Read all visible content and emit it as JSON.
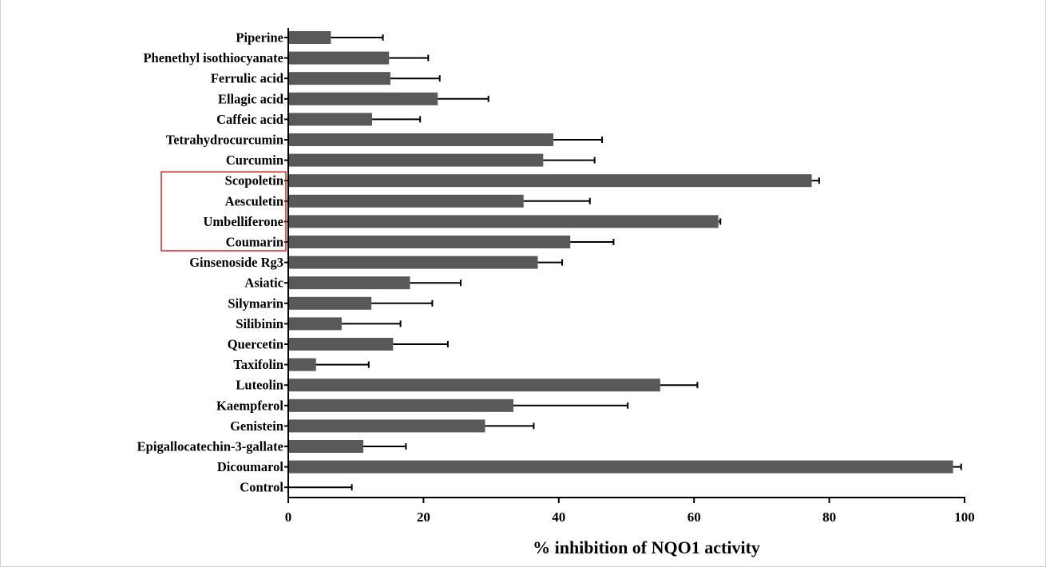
{
  "chart_data": {
    "type": "bar",
    "orientation": "horizontal",
    "title": "",
    "xlabel": "% inhibition of NQO1 activity",
    "ylabel": "",
    "xlim": [
      0,
      100
    ],
    "xticks": [
      0,
      20,
      40,
      60,
      80,
      100
    ],
    "grid": false,
    "bar_color": "#595959",
    "highlight_box_color": "#e02020",
    "highlighted_categories": [
      "Scopoletin",
      "Aesculetin",
      "Umbelliferone",
      "Coumarin"
    ],
    "categories": [
      "Piperine",
      "Phenethyl isothiocyanate",
      "Ferrulic acid",
      "Ellagic acid",
      "Caffeic acid",
      "Tetrahydrocurcumin",
      "Curcumin",
      "Scopoletin",
      "Aesculetin",
      "Umbelliferone",
      "Coumarin",
      "Ginsenoside Rg3",
      "Asiatic",
      "Silymarin",
      "Silibinin",
      "Quercetin",
      "Taxifolin",
      "Luteolin",
      "Kaempferol",
      "Genistein",
      "Epigallocatechin-3-gallate",
      "Dicoumarol",
      "Control"
    ],
    "values": [
      6.3,
      14.9,
      15.1,
      22.1,
      12.4,
      39.2,
      37.7,
      77.4,
      34.8,
      63.6,
      41.7,
      36.9,
      18.0,
      12.3,
      7.9,
      15.5,
      4.1,
      55.0,
      33.3,
      29.1,
      11.1,
      98.3,
      0
    ],
    "errors": [
      7.7,
      5.8,
      7.3,
      7.5,
      7.1,
      7.2,
      7.6,
      1.1,
      9.8,
      0.3,
      6.4,
      3.6,
      7.5,
      9.0,
      8.7,
      8.1,
      7.8,
      5.5,
      16.9,
      7.2,
      6.3,
      1.2,
      9.4
    ]
  }
}
